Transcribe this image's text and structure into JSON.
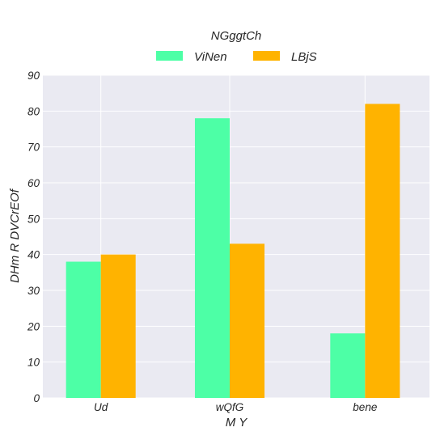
{
  "chart_data": {
    "type": "bar",
    "categories": [
      "Ud",
      "wQfG",
      "bene"
    ],
    "series": [
      {
        "name": "ViNen",
        "values": [
          38,
          78,
          18
        ],
        "color": "#4dffa6"
      },
      {
        "name": "LBjS",
        "values": [
          40,
          43,
          82
        ],
        "color": "#ffb300"
      }
    ],
    "legend_title": "NGggtCh",
    "legend_position": "top-center",
    "xlabel": "M Y",
    "ylabel": "DHm R DVCrEOf",
    "ylim": [
      0,
      90
    ],
    "yticks": [
      0,
      10,
      20,
      30,
      40,
      50,
      60,
      70,
      80,
      90
    ],
    "grid": true,
    "background": "#eaeaf2"
  }
}
